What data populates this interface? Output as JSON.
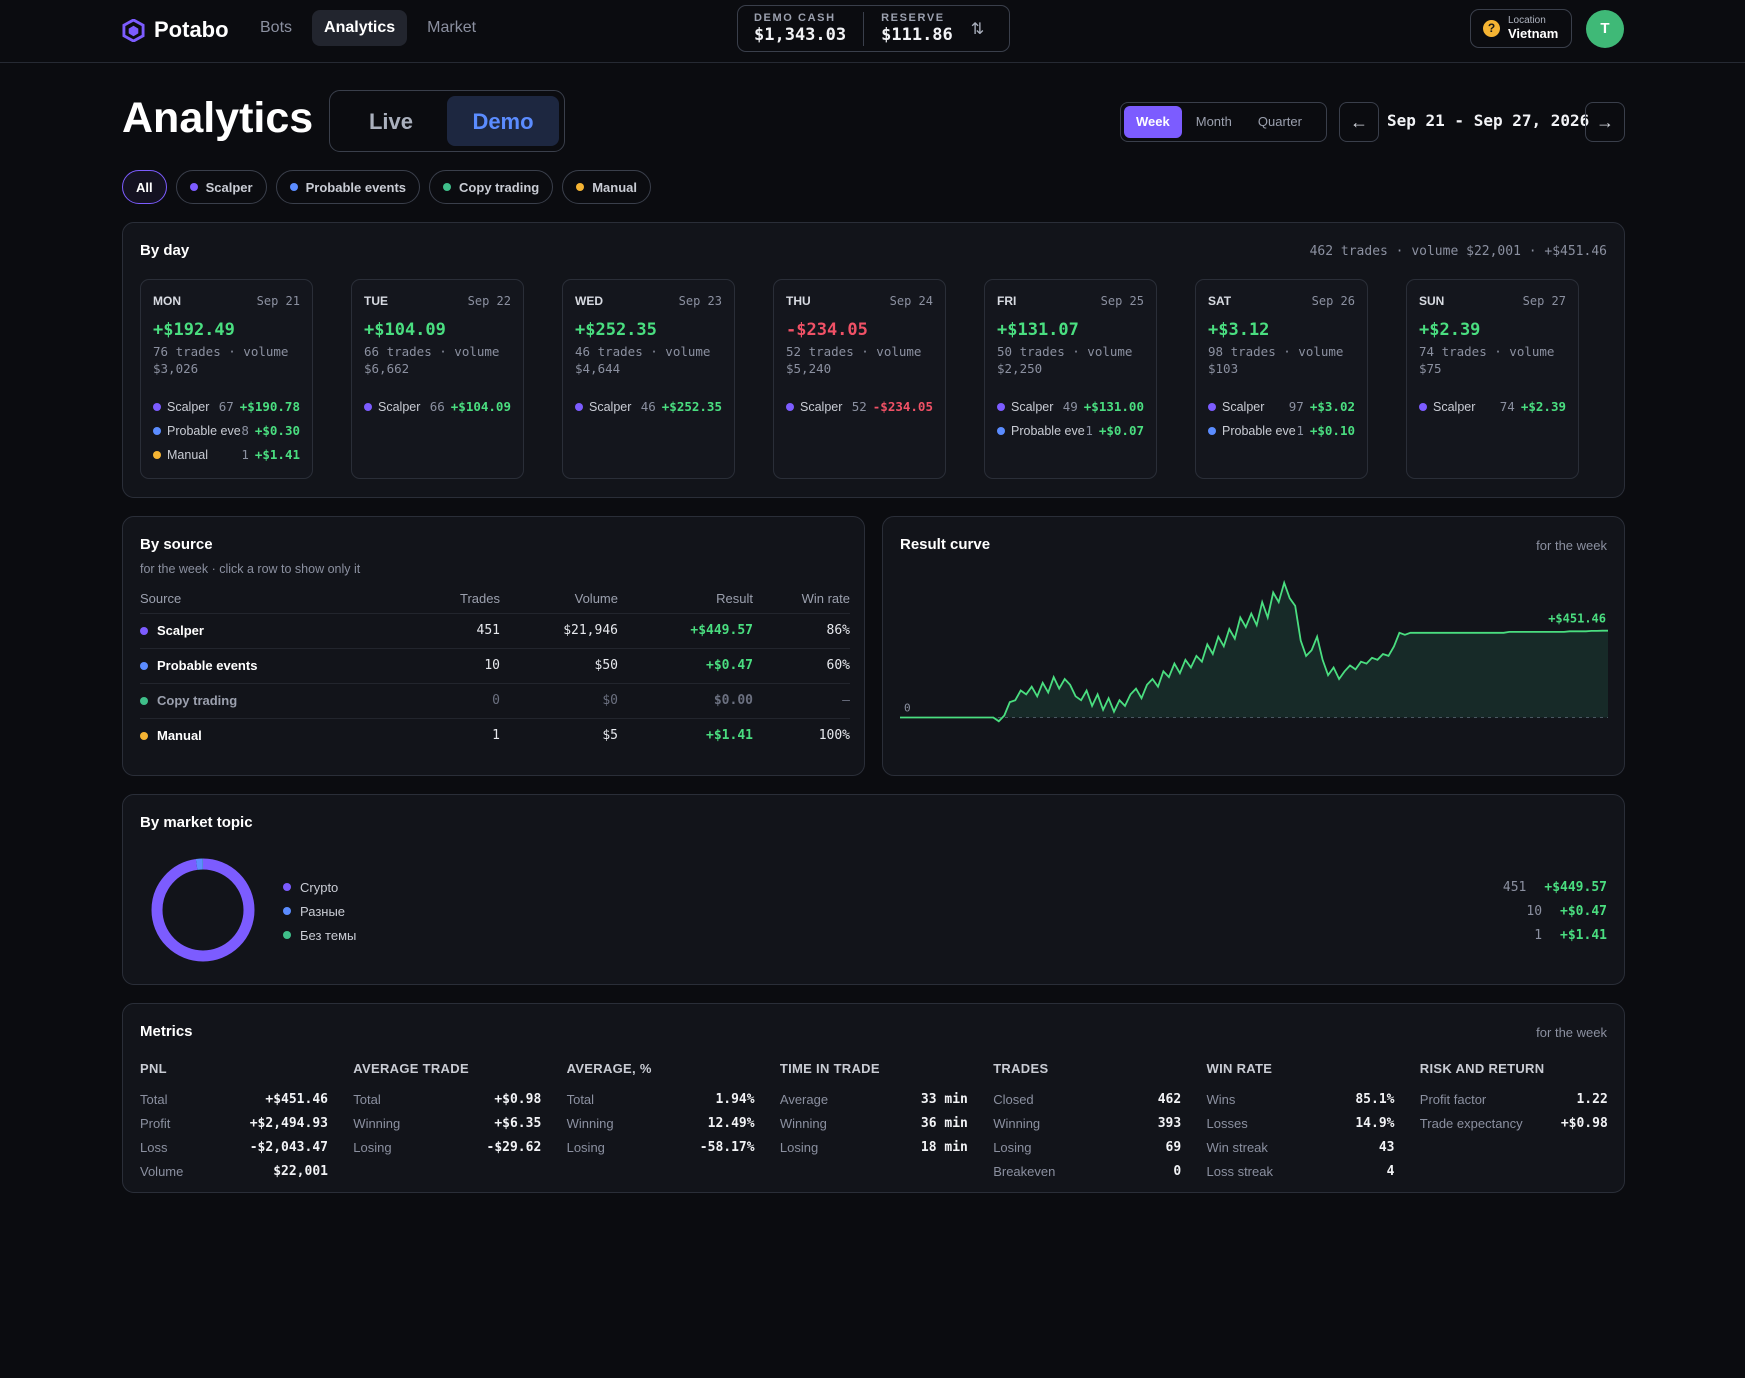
{
  "app": {
    "name": "Potabo"
  },
  "nav": [
    {
      "label": "Bots",
      "active": false
    },
    {
      "label": "Analytics",
      "active": true
    },
    {
      "label": "Market",
      "active": false
    }
  ],
  "balances": {
    "demo_cash_label": "DEMO CASH",
    "demo_cash_value": "$1,343.03",
    "reserve_label": "RESERVE",
    "reserve_value": "$111.86"
  },
  "location": {
    "label": "Location",
    "value": "Vietnam"
  },
  "user": {
    "initial": "T"
  },
  "header": {
    "title": "Analytics",
    "modes": [
      {
        "label": "Live",
        "active": false
      },
      {
        "label": "Demo",
        "active": true
      }
    ],
    "periods": [
      {
        "label": "Week",
        "active": true
      },
      {
        "label": "Month",
        "active": false
      },
      {
        "label": "Quarter",
        "active": false
      }
    ],
    "date_range": "Sep 21 - Sep 27, 2026"
  },
  "filters": [
    {
      "label": "All",
      "active": true,
      "color": ""
    },
    {
      "label": "Scalper",
      "active": false,
      "color": "#7c5cff"
    },
    {
      "label": "Probable events",
      "active": false,
      "color": "#5b8cff"
    },
    {
      "label": "Copy trading",
      "active": false,
      "color": "#3fbf8a"
    },
    {
      "label": "Manual",
      "active": false,
      "color": "#f5b433"
    }
  ],
  "colors": {
    "scalper": "#7c5cff",
    "probable": "#5b8cff",
    "copy": "#3fbf8a",
    "manual": "#f5b433",
    "positive": "#4ade80",
    "negative": "#f05166"
  },
  "by_day": {
    "title": "By day",
    "summary": "462 trades · volume $22,001 · +$451.46",
    "days": [
      {
        "name": "MON",
        "date": "Sep 21",
        "result": "+$192.49",
        "sign": "pos",
        "meta": "76 trades · volume $3,026",
        "rows": [
          {
            "source": "Scalper",
            "color": "#7c5cff",
            "count": "67",
            "value": "+$190.78",
            "sign": "pos"
          },
          {
            "source": "Probable even..",
            "color": "#5b8cff",
            "count": "8",
            "value": "+$0.30",
            "sign": "pos"
          },
          {
            "source": "Manual",
            "color": "#f5b433",
            "count": "1",
            "value": "+$1.41",
            "sign": "pos"
          }
        ]
      },
      {
        "name": "TUE",
        "date": "Sep 22",
        "result": "+$104.09",
        "sign": "pos",
        "meta": "66 trades · volume $6,662",
        "rows": [
          {
            "source": "Scalper",
            "color": "#7c5cff",
            "count": "66",
            "value": "+$104.09",
            "sign": "pos"
          }
        ]
      },
      {
        "name": "WED",
        "date": "Sep 23",
        "result": "+$252.35",
        "sign": "pos",
        "meta": "46 trades · volume $4,644",
        "rows": [
          {
            "source": "Scalper",
            "color": "#7c5cff",
            "count": "46",
            "value": "+$252.35",
            "sign": "pos"
          }
        ]
      },
      {
        "name": "THU",
        "date": "Sep 24",
        "result": "-$234.05",
        "sign": "neg",
        "meta": "52 trades · volume $5,240",
        "rows": [
          {
            "source": "Scalper",
            "color": "#7c5cff",
            "count": "52",
            "value": "-$234.05",
            "sign": "neg"
          }
        ]
      },
      {
        "name": "FRI",
        "date": "Sep 25",
        "result": "+$131.07",
        "sign": "pos",
        "meta": "50 trades · volume $2,250",
        "rows": [
          {
            "source": "Scalper",
            "color": "#7c5cff",
            "count": "49",
            "value": "+$131.00",
            "sign": "pos"
          },
          {
            "source": "Probable even..",
            "color": "#5b8cff",
            "count": "1",
            "value": "+$0.07",
            "sign": "pos"
          }
        ]
      },
      {
        "name": "SAT",
        "date": "Sep 26",
        "result": "+$3.12",
        "sign": "pos",
        "meta": "98 trades · volume $103",
        "rows": [
          {
            "source": "Scalper",
            "color": "#7c5cff",
            "count": "97",
            "value": "+$3.02",
            "sign": "pos"
          },
          {
            "source": "Probable even..",
            "color": "#5b8cff",
            "count": "1",
            "value": "+$0.10",
            "sign": "pos"
          }
        ]
      },
      {
        "name": "SUN",
        "date": "Sep 27",
        "result": "+$2.39",
        "sign": "pos",
        "meta": "74 trades · volume $75",
        "rows": [
          {
            "source": "Scalper",
            "color": "#7c5cff",
            "count": "74",
            "value": "+$2.39",
            "sign": "pos"
          }
        ]
      }
    ]
  },
  "by_source": {
    "title": "By source",
    "subtitle": "for the week · click a row to show only it",
    "columns": [
      "Source",
      "Trades",
      "Volume",
      "Result",
      "Win rate"
    ],
    "rows": [
      {
        "source": "Scalper",
        "color": "#7c5cff",
        "trades": "451",
        "volume": "$21,946",
        "result": "+$449.57",
        "sign": "pos",
        "win_rate": "86%",
        "muted": false
      },
      {
        "source": "Probable events",
        "color": "#5b8cff",
        "trades": "10",
        "volume": "$50",
        "result": "+$0.47",
        "sign": "pos",
        "win_rate": "60%",
        "muted": false
      },
      {
        "source": "Copy trading",
        "color": "#3fbf8a",
        "trades": "0",
        "volume": "$0",
        "result": "$0.00",
        "sign": "",
        "win_rate": "—",
        "muted": true
      },
      {
        "source": "Manual",
        "color": "#f5b433",
        "trades": "1",
        "volume": "$5",
        "result": "+$1.41",
        "sign": "pos",
        "win_rate": "100%",
        "muted": false
      }
    ]
  },
  "result_curve": {
    "title": "Result curve",
    "subtitle": "for the week",
    "final_label": "+$451.46",
    "zero_label": "0"
  },
  "chart_data": {
    "type": "line",
    "title": "Result curve",
    "ylabel": "",
    "final_value": 451.46,
    "y": [
      0,
      0,
      0,
      0,
      0,
      0,
      0,
      0,
      0,
      0,
      0,
      0,
      0,
      0,
      0,
      0,
      0,
      0,
      -20,
      10,
      80,
      90,
      140,
      120,
      160,
      110,
      180,
      130,
      210,
      150,
      200,
      170,
      110,
      90,
      140,
      60,
      120,
      40,
      100,
      30,
      90,
      60,
      120,
      150,
      100,
      170,
      200,
      160,
      240,
      210,
      280,
      230,
      300,
      260,
      320,
      290,
      380,
      330,
      420,
      370,
      460,
      410,
      520,
      470,
      540,
      480,
      600,
      520,
      650,
      600,
      700,
      620,
      580,
      400,
      320,
      350,
      420,
      300,
      220,
      260,
      200,
      240,
      270,
      250,
      290,
      280,
      310,
      300,
      330,
      320,
      370,
      440,
      430,
      440,
      440,
      440,
      440,
      440,
      440,
      440,
      440,
      440,
      440,
      440,
      440,
      440,
      440,
      440,
      440,
      440,
      440,
      445,
      445,
      445,
      445,
      445,
      445,
      445,
      445,
      445,
      445,
      445,
      448,
      448,
      448,
      448,
      450,
      450,
      451,
      451
    ]
  },
  "by_topic": {
    "title": "By market topic",
    "items": [
      {
        "label": "Crypto",
        "color": "#7c5cff",
        "count": "451",
        "value": "+$449.57",
        "share": 0.976
      },
      {
        "label": "Разные",
        "color": "#5b8cff",
        "count": "10",
        "value": "+$0.47",
        "share": 0.022
      },
      {
        "label": "Без темы",
        "color": "#3fbf8a",
        "count": "1",
        "value": "+$1.41",
        "share": 0.002
      }
    ]
  },
  "metrics": {
    "title": "Metrics",
    "subtitle": "for the week",
    "groups": [
      {
        "title": "PNL",
        "rows": [
          {
            "label": "Total",
            "value": "+$451.46",
            "sign": "pos"
          },
          {
            "label": "Profit",
            "value": "+$2,494.93",
            "sign": "pos"
          },
          {
            "label": "Loss",
            "value": "-$2,043.47",
            "sign": "neg"
          },
          {
            "label": "Volume",
            "value": "$22,001",
            "sign": ""
          }
        ]
      },
      {
        "title": "AVERAGE TRADE",
        "rows": [
          {
            "label": "Total",
            "value": "+$0.98",
            "sign": "pos"
          },
          {
            "label": "Winning",
            "value": "+$6.35",
            "sign": "pos"
          },
          {
            "label": "Losing",
            "value": "-$29.62",
            "sign": "neg"
          }
        ]
      },
      {
        "title": "AVERAGE, %",
        "rows": [
          {
            "label": "Total",
            "value": "1.94%",
            "sign": "pos"
          },
          {
            "label": "Winning",
            "value": "12.49%",
            "sign": "pos"
          },
          {
            "label": "Losing",
            "value": "-58.17%",
            "sign": "neg"
          }
        ]
      },
      {
        "title": "TIME IN TRADE",
        "rows": [
          {
            "label": "Average",
            "value": "33 min",
            "sign": ""
          },
          {
            "label": "Winning",
            "value": "36 min",
            "sign": ""
          },
          {
            "label": "Losing",
            "value": "18 min",
            "sign": ""
          }
        ]
      },
      {
        "title": "TRADES",
        "rows": [
          {
            "label": "Closed",
            "value": "462",
            "sign": ""
          },
          {
            "label": "Winning",
            "value": "393",
            "sign": "pos"
          },
          {
            "label": "Losing",
            "value": "69",
            "sign": "neg"
          },
          {
            "label": "Breakeven",
            "value": "0",
            "sign": ""
          }
        ]
      },
      {
        "title": "WIN RATE",
        "rows": [
          {
            "label": "Wins",
            "value": "85.1%",
            "sign": ""
          },
          {
            "label": "Losses",
            "value": "14.9%",
            "sign": ""
          },
          {
            "label": "Win streak",
            "value": "43",
            "sign": ""
          },
          {
            "label": "Loss streak",
            "value": "4",
            "sign": ""
          }
        ]
      },
      {
        "title": "RISK AND RETURN",
        "rows": [
          {
            "label": "Profit factor",
            "value": "1.22",
            "sign": ""
          },
          {
            "label": "Trade expectancy",
            "value": "+$0.98",
            "sign": "pos"
          }
        ]
      }
    ]
  }
}
